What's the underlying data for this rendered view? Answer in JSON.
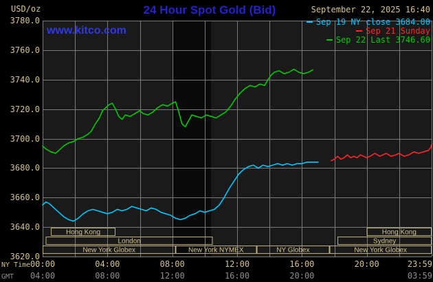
{
  "colors": {
    "background": "#000000",
    "axis-text": "#d4c38c",
    "secondary-text": "#8f8f8f",
    "title-blue": "#2323cd",
    "link-blue": "#3038e6"
  },
  "header": {
    "units": "USD/oz",
    "title": "24 Hour Spot Gold (Bid)",
    "datetime": "September 22, 2025 16:40",
    "watermark": "www.kitco.com"
  },
  "legend": {
    "items": [
      {
        "color": "#00c8ff",
        "label": "Sep 19 NY close 3684.00"
      },
      {
        "color": "#ff2626",
        "label": "Sep 21 Sunday"
      },
      {
        "color": "#00cc00",
        "label": "Sep 22 Last 3746.60"
      }
    ]
  },
  "axes": {
    "ny_time_label": "NY Time",
    "gmt_label": "GMT"
  },
  "chart_data": {
    "type": "line",
    "title": "24 Hour Spot Gold (Bid)",
    "ylabel": "USD/oz",
    "grid": true,
    "legend_position": "top-right",
    "colors": {
      "plot_bg": "#1a1a1a",
      "band_bg": "#0a0a0a",
      "grid": "#7a7a7a",
      "session_box": "#bfae78",
      "session_text": "#d4c38c"
    },
    "x_axis": {
      "label": "NY Time",
      "min": 0,
      "max": 24,
      "grid_interval_hours": 2,
      "tick_hours": [
        0,
        4,
        8,
        12,
        16,
        20,
        24
      ],
      "tick_labels": [
        "00:00",
        "04:00",
        "08:00",
        "12:00",
        "16:00",
        "20:00",
        "23:59"
      ]
    },
    "x_axis_secondary": {
      "label": "GMT",
      "tick_hours": [
        0,
        4,
        8,
        12,
        16,
        24
      ],
      "tick_labels": [
        "04:00",
        "08:00",
        "12:00",
        "16:00",
        "20:00",
        "03:59"
      ]
    },
    "y_axis": {
      "min": 3620,
      "max": 3780,
      "tick_interval": 20,
      "tick_labels": [
        "3780.0",
        "3760.0",
        "3740.0",
        "3720.0",
        "3700.0",
        "3680.0",
        "3660.0",
        "3640.0",
        "3620.0"
      ]
    },
    "shaded_band": {
      "start_hour": 8.0,
      "end_hour": 10.4
    },
    "series": [
      {
        "id": "sep19",
        "name": "Sep 19 NY close",
        "close_value": 3684.0,
        "color": "#00c8ff",
        "points": [
          [
            0,
            3655
          ],
          [
            0.2,
            3657
          ],
          [
            0.4,
            3656
          ],
          [
            0.7,
            3653
          ],
          [
            1,
            3650
          ],
          [
            1.3,
            3647
          ],
          [
            1.6,
            3645
          ],
          [
            1.9,
            3644
          ],
          [
            2.2,
            3646
          ],
          [
            2.5,
            3649
          ],
          [
            2.8,
            3651
          ],
          [
            3.1,
            3652
          ],
          [
            3.4,
            3651
          ],
          [
            3.7,
            3650
          ],
          [
            4,
            3649
          ],
          [
            4.3,
            3650
          ],
          [
            4.6,
            3652
          ],
          [
            4.9,
            3651
          ],
          [
            5.2,
            3652
          ],
          [
            5.5,
            3654
          ],
          [
            5.8,
            3653
          ],
          [
            6.1,
            3652
          ],
          [
            6.4,
            3651
          ],
          [
            6.7,
            3653
          ],
          [
            7,
            3652
          ],
          [
            7.3,
            3650
          ],
          [
            7.6,
            3649
          ],
          [
            7.9,
            3648
          ],
          [
            8.2,
            3646
          ],
          [
            8.5,
            3645
          ],
          [
            8.8,
            3646
          ],
          [
            9.1,
            3648
          ],
          [
            9.4,
            3649
          ],
          [
            9.7,
            3651
          ],
          [
            10,
            3650
          ],
          [
            10.3,
            3651
          ],
          [
            10.6,
            3652
          ],
          [
            10.9,
            3655
          ],
          [
            11.2,
            3660
          ],
          [
            11.5,
            3666
          ],
          [
            11.8,
            3671
          ],
          [
            12.1,
            3676
          ],
          [
            12.4,
            3679
          ],
          [
            12.7,
            3681
          ],
          [
            13,
            3682
          ],
          [
            13.3,
            3680
          ],
          [
            13.6,
            3682
          ],
          [
            13.9,
            3681
          ],
          [
            14.2,
            3682
          ],
          [
            14.5,
            3683
          ],
          [
            14.8,
            3682
          ],
          [
            15.1,
            3683
          ],
          [
            15.4,
            3682
          ],
          [
            15.7,
            3683
          ],
          [
            16,
            3683
          ],
          [
            16.3,
            3684
          ],
          [
            16.6,
            3684
          ],
          [
            17,
            3684
          ]
        ]
      },
      {
        "id": "sep21",
        "name": "Sep 21 Sunday",
        "color": "#ff2626",
        "points": [
          [
            17.8,
            3685
          ],
          [
            18,
            3686
          ],
          [
            18.2,
            3688
          ],
          [
            18.4,
            3686
          ],
          [
            18.6,
            3687
          ],
          [
            18.8,
            3689
          ],
          [
            19,
            3687
          ],
          [
            19.2,
            3688
          ],
          [
            19.4,
            3687
          ],
          [
            19.6,
            3689
          ],
          [
            19.8,
            3688
          ],
          [
            20,
            3687
          ],
          [
            20.2,
            3688
          ],
          [
            20.5,
            3690
          ],
          [
            20.8,
            3688
          ],
          [
            21,
            3689
          ],
          [
            21.2,
            3690
          ],
          [
            21.5,
            3688
          ],
          [
            21.8,
            3689
          ],
          [
            22,
            3690
          ],
          [
            22.3,
            3688
          ],
          [
            22.6,
            3689
          ],
          [
            22.9,
            3691
          ],
          [
            23.2,
            3690
          ],
          [
            23.5,
            3691
          ],
          [
            23.8,
            3692
          ],
          [
            23.95,
            3694
          ],
          [
            24,
            3696
          ]
        ]
      },
      {
        "id": "sep22",
        "name": "Sep 22 Last",
        "last_value": 3746.6,
        "color": "#00cc00",
        "points": [
          [
            0,
            3695
          ],
          [
            0.2,
            3693
          ],
          [
            0.5,
            3691
          ],
          [
            0.8,
            3690
          ],
          [
            1,
            3692
          ],
          [
            1.3,
            3695
          ],
          [
            1.6,
            3697
          ],
          [
            1.9,
            3698
          ],
          [
            2.2,
            3700
          ],
          [
            2.5,
            3701
          ],
          [
            2.8,
            3703
          ],
          [
            3,
            3705
          ],
          [
            3.2,
            3709
          ],
          [
            3.5,
            3714
          ],
          [
            3.7,
            3719
          ],
          [
            3.9,
            3721
          ],
          [
            4.1,
            3723
          ],
          [
            4.3,
            3724
          ],
          [
            4.5,
            3720
          ],
          [
            4.7,
            3715
          ],
          [
            4.9,
            3713
          ],
          [
            5.1,
            3716
          ],
          [
            5.4,
            3715
          ],
          [
            5.7,
            3717
          ],
          [
            6,
            3719
          ],
          [
            6.2,
            3717
          ],
          [
            6.5,
            3716
          ],
          [
            6.8,
            3718
          ],
          [
            7.1,
            3721
          ],
          [
            7.4,
            3723
          ],
          [
            7.7,
            3722
          ],
          [
            8,
            3724
          ],
          [
            8.2,
            3725
          ],
          [
            8.4,
            3718
          ],
          [
            8.6,
            3710
          ],
          [
            8.8,
            3708
          ],
          [
            9,
            3712
          ],
          [
            9.2,
            3716
          ],
          [
            9.5,
            3715
          ],
          [
            9.8,
            3714
          ],
          [
            10.1,
            3716
          ],
          [
            10.4,
            3715
          ],
          [
            10.7,
            3714
          ],
          [
            11,
            3716
          ],
          [
            11.3,
            3718
          ],
          [
            11.6,
            3722
          ],
          [
            11.9,
            3727
          ],
          [
            12.2,
            3731
          ],
          [
            12.5,
            3734
          ],
          [
            12.8,
            3736
          ],
          [
            13.1,
            3735
          ],
          [
            13.4,
            3737
          ],
          [
            13.7,
            3736
          ],
          [
            13.9,
            3740
          ],
          [
            14.1,
            3743
          ],
          [
            14.3,
            3745
          ],
          [
            14.6,
            3746
          ],
          [
            14.9,
            3744
          ],
          [
            15.2,
            3745
          ],
          [
            15.5,
            3747
          ],
          [
            15.8,
            3745
          ],
          [
            16.1,
            3744
          ],
          [
            16.4,
            3745
          ],
          [
            16.67,
            3746.6
          ]
        ]
      }
    ],
    "sessions": [
      {
        "row": 0,
        "label": "Hong Kong",
        "start": 0.5,
        "end": 4.5
      },
      {
        "row": 0,
        "label": "Hong Kong",
        "start": 20.0,
        "end": 24
      },
      {
        "row": 1,
        "label": "London",
        "start": 0.2,
        "end": 10.5
      },
      {
        "row": 1,
        "label": "Sydney",
        "start": 18.2,
        "end": 24
      },
      {
        "row": 2,
        "label": "New York Globex",
        "start": 0,
        "end": 8.2
      },
      {
        "row": 2,
        "label": "New York NYMEX",
        "start": 8.2,
        "end": 13.2
      },
      {
        "row": 2,
        "label": "NY Globex",
        "start": 13.2,
        "end": 17.7
      },
      {
        "row": 2,
        "label": "New York Globex",
        "start": 17.7,
        "end": 24
      }
    ]
  }
}
